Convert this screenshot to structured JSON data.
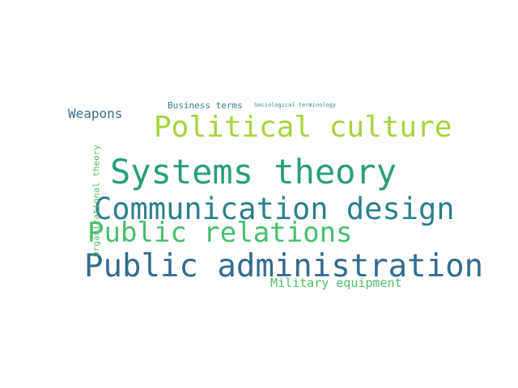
{
  "word_cloud": {
    "words": [
      {
        "key": "systems",
        "text": "Systems theory",
        "color": "#2a9d7c"
      },
      {
        "key": "pubadmin",
        "text": "Public administration",
        "color": "#336b8e"
      },
      {
        "key": "comm",
        "text": "Communication design",
        "color": "#2d7f8c"
      },
      {
        "key": "polcult",
        "text": "Political culture",
        "color": "#a6d33d"
      },
      {
        "key": "pubrel",
        "text": "Public relations",
        "color": "#47be6e"
      },
      {
        "key": "weapons",
        "text": "Weapons",
        "color": "#3b6e90"
      },
      {
        "key": "military",
        "text": "Military equipment",
        "color": "#4cc26a"
      },
      {
        "key": "business",
        "text": "Business terms",
        "color": "#2f7f8d"
      },
      {
        "key": "socio",
        "text": "Sociological terminology",
        "color": "#2f8a88"
      },
      {
        "key": "org",
        "text": "Organizational theory",
        "color": "#5ab96b"
      }
    ]
  }
}
